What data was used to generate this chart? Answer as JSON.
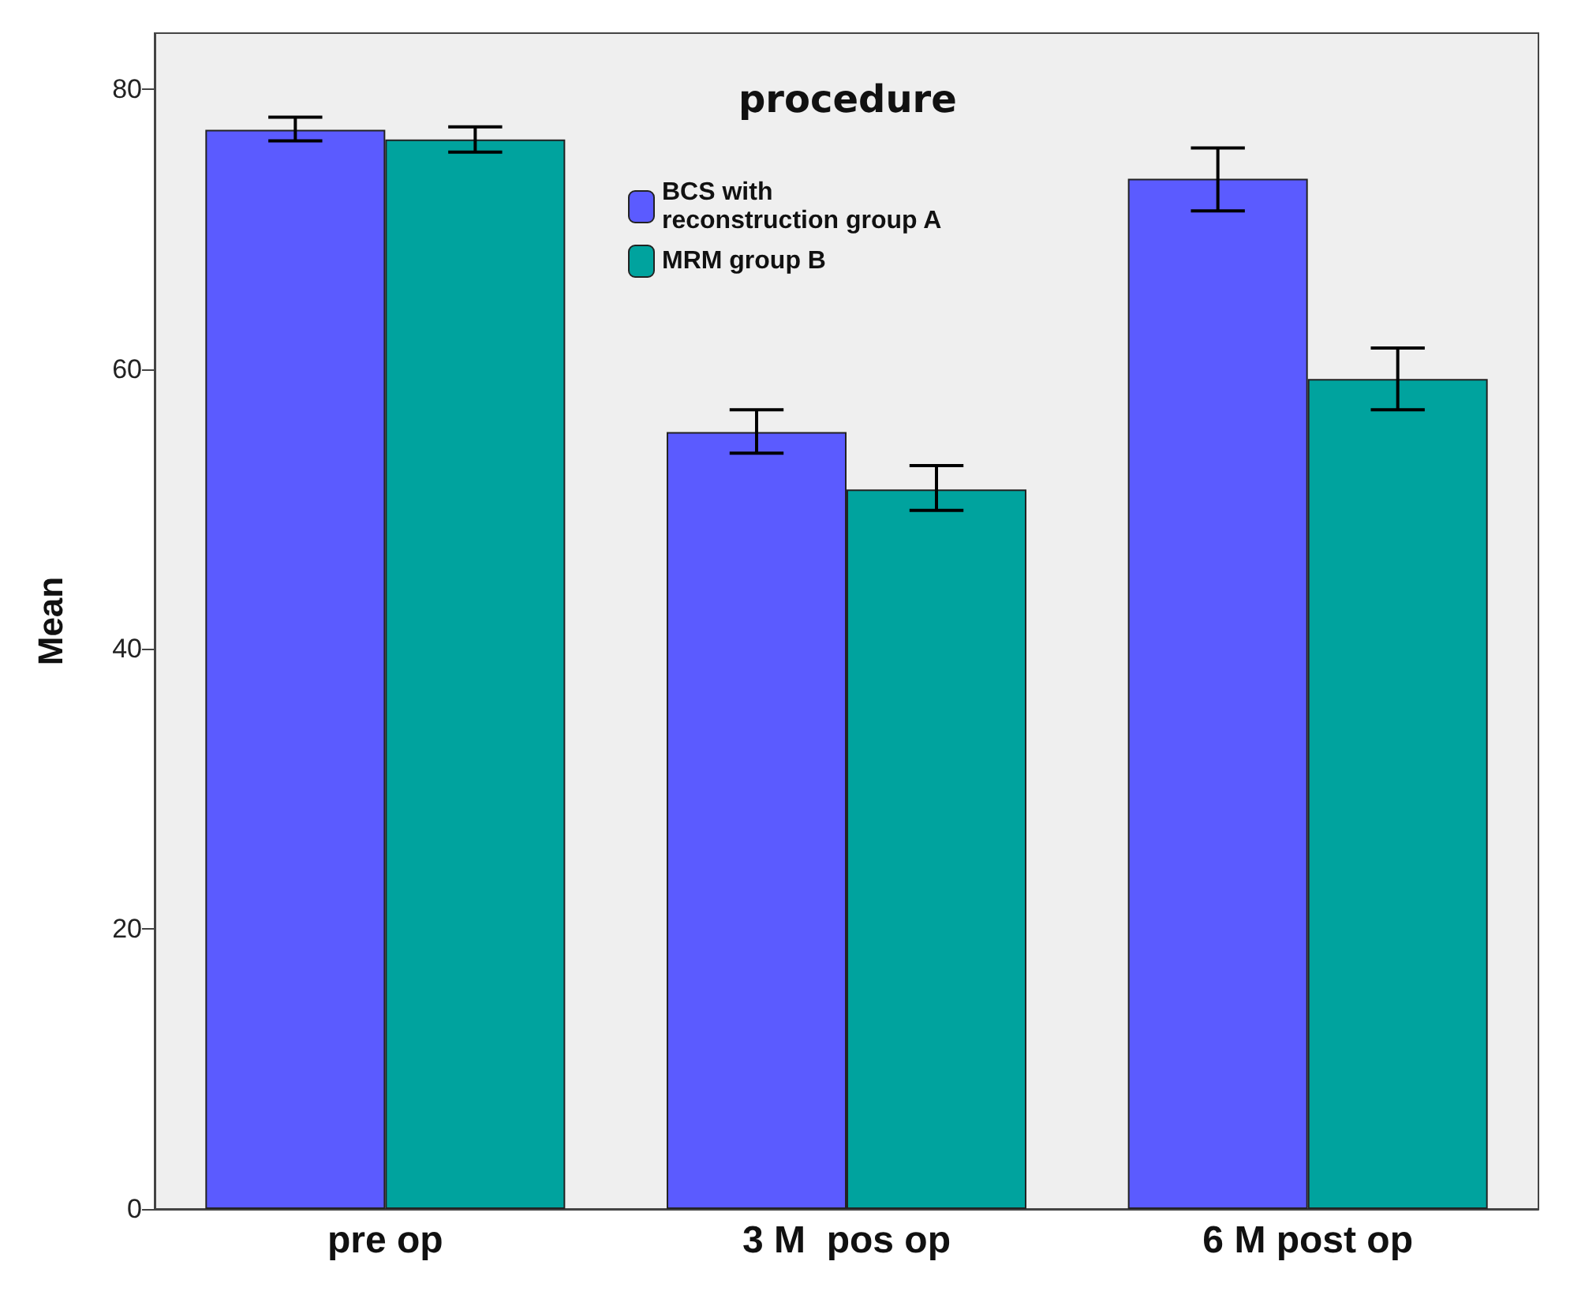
{
  "chart_data": {
    "type": "bar",
    "ylabel": "Mean",
    "legend_title": "procedure",
    "categories": [
      "pre op",
      "3 M  pos op",
      "6 M post op"
    ],
    "series": [
      {
        "name": "BCS with\nreconstruction group A",
        "color": "#5b5bff",
        "values": [
          77.1,
          55.5,
          73.6
        ],
        "errors": [
          [
            76.3,
            78.0
          ],
          [
            54.0,
            57.1
          ],
          [
            71.3,
            75.8
          ]
        ]
      },
      {
        "name": "MRM group B",
        "color": "#00a39e",
        "values": [
          76.4,
          51.4,
          59.3
        ],
        "errors": [
          [
            75.5,
            77.3
          ],
          [
            49.9,
            53.1
          ],
          [
            57.1,
            61.5
          ]
        ]
      }
    ],
    "ylim": [
      0,
      84
    ],
    "yticks": [
      0,
      20,
      40,
      60,
      80
    ],
    "grid": false,
    "legend": "top"
  }
}
